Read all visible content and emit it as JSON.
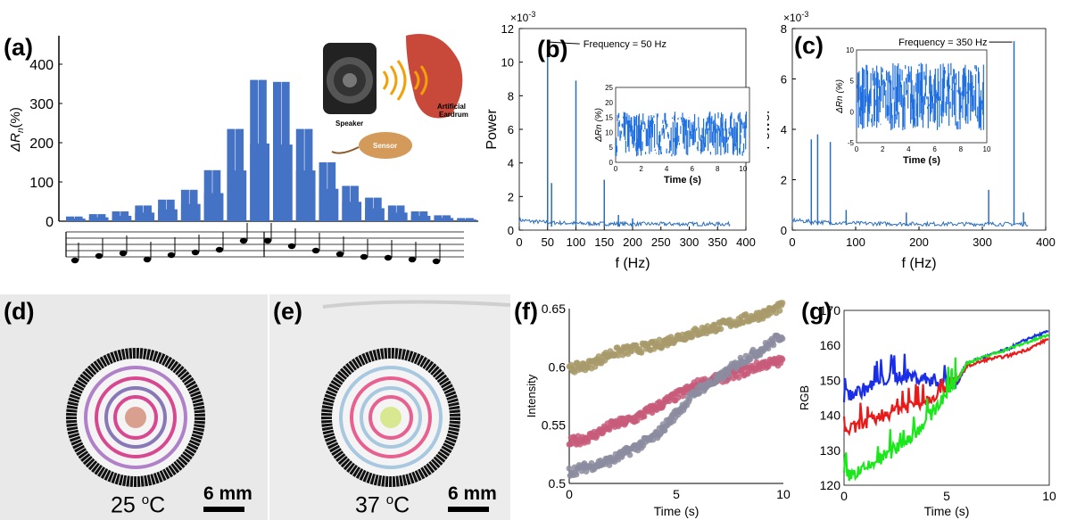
{
  "panels": {
    "a": {
      "label": "(a)",
      "ylabel": "ΔR",
      "ylabel_sub": "n",
      "ylabel_unit": "(%)",
      "yticks": [
        "0",
        "100",
        "200",
        "300",
        "400"
      ],
      "inset_labels": {
        "speaker": "Speaker",
        "sensor": "Sensor",
        "eardrum_1": "Artificial",
        "eardrum_2": "Eardrum"
      }
    },
    "b": {
      "label": "(b)",
      "annotation": "Frequency = 50 Hz",
      "exp": "×10",
      "exp_pow": "-3"
    },
    "c": {
      "label": "(c)",
      "annotation": "Frequency = 350 Hz",
      "exp": "×10",
      "exp_pow": "-3"
    },
    "d": {
      "label": "(d)",
      "temp": "25 ",
      "temp_unit_sup": "o",
      "temp_unit": "C",
      "scale": "6 mm"
    },
    "e": {
      "label": "(e)",
      "temp": "37 ",
      "temp_unit_sup": "o",
      "temp_unit": "C",
      "scale": "6 mm"
    },
    "f": {
      "label": "(f)"
    },
    "g": {
      "label": "(g)"
    }
  },
  "chart_data": [
    {
      "type": "line",
      "panel": "a",
      "xlabel": "",
      "ylabel": "ΔRn (%)",
      "ylim": [
        0,
        400
      ],
      "description_levels": [
        12,
        18,
        25,
        40,
        55,
        80,
        130,
        235,
        360,
        355,
        235,
        150,
        90,
        60,
        40,
        25,
        15,
        8
      ]
    },
    {
      "type": "line",
      "panel": "b",
      "xlabel": "f (Hz)",
      "ylabel": "Power",
      "xlim": [
        0,
        400
      ],
      "ylim": [
        0,
        12
      ],
      "xticks": [
        "0",
        "50",
        "100",
        "150",
        "200",
        "250",
        "300",
        "350",
        "400"
      ],
      "yticks": [
        "0",
        "2",
        "4",
        "6",
        "8",
        "10",
        "12"
      ],
      "peaks": [
        {
          "x": 50,
          "y": 11.3
        },
        {
          "x": 57,
          "y": 2.8
        },
        {
          "x": 100,
          "y": 8.9
        },
        {
          "x": 150,
          "y": 3.0
        },
        {
          "x": 175,
          "y": 0.9
        },
        {
          "x": 200,
          "y": 0.7
        }
      ],
      "inset": {
        "xlabel": "Time (s)",
        "ylabel": "ΔRn (%)",
        "xticks": [
          "0",
          "2",
          "4",
          "6",
          "8",
          "10"
        ],
        "yticks": [
          "0",
          "5",
          "10",
          "15",
          "20",
          "25"
        ],
        "xlim": [
          0,
          10.5
        ],
        "ylim": [
          0,
          25
        ],
        "band": [
          2,
          17
        ]
      }
    },
    {
      "type": "line",
      "panel": "c",
      "xlabel": "f (Hz)",
      "ylabel": "Power",
      "xlim": [
        0,
        400
      ],
      "ylim": [
        0,
        8
      ],
      "xticks": [
        "0",
        "100",
        "200",
        "300",
        "400"
      ],
      "yticks": [
        "0",
        "2",
        "4",
        "6",
        "8"
      ],
      "peaks": [
        {
          "x": 30,
          "y": 3.6
        },
        {
          "x": 40,
          "y": 3.8
        },
        {
          "x": 60,
          "y": 3.5
        },
        {
          "x": 85,
          "y": 0.8
        },
        {
          "x": 180,
          "y": 0.7
        },
        {
          "x": 310,
          "y": 1.6
        },
        {
          "x": 350,
          "y": 7.5
        },
        {
          "x": 365,
          "y": 0.7
        }
      ],
      "inset": {
        "xlabel": "Time (s)",
        "ylabel": "ΔRn (%)",
        "xticks": [
          "0",
          "2",
          "4",
          "6",
          "8",
          "10"
        ],
        "yticks": [
          "-5",
          "0",
          "5",
          "10"
        ],
        "xlim": [
          0,
          10
        ],
        "ylim": [
          -5,
          10
        ],
        "band": [
          -3,
          8
        ]
      }
    },
    {
      "type": "scatter",
      "panel": "f",
      "xlabel": "Time (s)",
      "ylabel": "Intensity",
      "xlim": [
        0,
        10
      ],
      "ylim": [
        0.5,
        0.65
      ],
      "xticks": [
        "0",
        "5",
        "10"
      ],
      "yticks": [
        "0.5",
        "0.55",
        "0.6",
        "0.65"
      ],
      "series": [
        {
          "color": "#a89a6a",
          "x": [
            0,
            1,
            2,
            3,
            4,
            5,
            6,
            7,
            8,
            9,
            10
          ],
          "y": [
            0.598,
            0.602,
            0.612,
            0.615,
            0.618,
            0.625,
            0.63,
            0.635,
            0.64,
            0.645,
            0.652
          ]
        },
        {
          "color": "#c85a7a",
          "x": [
            0,
            1,
            2,
            3,
            4,
            5,
            6,
            7,
            8,
            9,
            10
          ],
          "y": [
            0.535,
            0.54,
            0.55,
            0.555,
            0.565,
            0.575,
            0.585,
            0.59,
            0.595,
            0.602,
            0.605
          ]
        },
        {
          "color": "#8c8ca0",
          "x": [
            0,
            1,
            2,
            3,
            4,
            5,
            6,
            7,
            8,
            9,
            10
          ],
          "y": [
            0.51,
            0.515,
            0.52,
            0.53,
            0.54,
            0.56,
            0.58,
            0.59,
            0.605,
            0.615,
            0.628
          ]
        }
      ]
    },
    {
      "type": "line",
      "panel": "g",
      "xlabel": "Time (s)",
      "ylabel": "RGB",
      "xlim": [
        0,
        10
      ],
      "ylim": [
        120,
        170
      ],
      "xticks": [
        "0",
        "5",
        "10"
      ],
      "yticks": [
        "120",
        "130",
        "140",
        "150",
        "160",
        "170"
      ],
      "series": [
        {
          "color": "#1a2ee8",
          "x": [
            0,
            1,
            2,
            3,
            4,
            5,
            5.5,
            6,
            7,
            8,
            9,
            10
          ],
          "y": [
            145,
            147,
            150,
            151,
            150,
            149,
            149,
            155,
            157,
            159,
            162,
            164
          ]
        },
        {
          "color": "#e81a1a",
          "x": [
            0,
            1,
            2,
            3,
            4,
            5,
            5.5,
            6,
            7,
            8,
            9,
            10
          ],
          "y": [
            135,
            137,
            140,
            142,
            144,
            148,
            150,
            154,
            156,
            157,
            159,
            162
          ]
        },
        {
          "color": "#1ae81a",
          "x": [
            0,
            1,
            2,
            3,
            4,
            5,
            5.5,
            6,
            7,
            8,
            9,
            10
          ],
          "y": [
            122,
            124,
            128,
            132,
            138,
            146,
            150,
            155,
            157,
            159,
            161,
            163
          ]
        }
      ]
    }
  ]
}
